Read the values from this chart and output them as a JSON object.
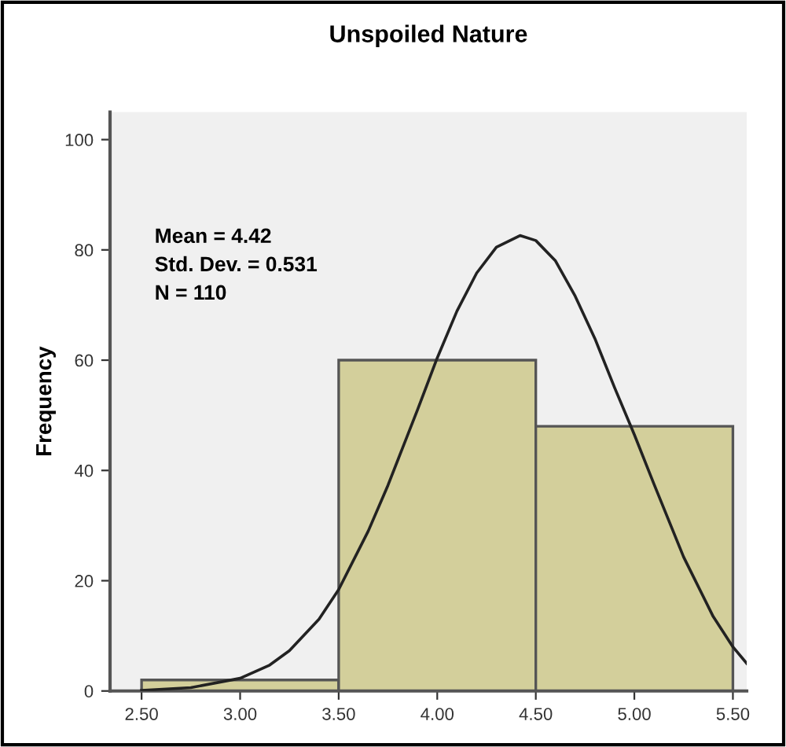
{
  "chart_data": {
    "type": "histogram",
    "title": "Unspoiled Nature",
    "ylabel": "Frequency",
    "bins": [
      2.5,
      3.5,
      4.5,
      5.5
    ],
    "values": [
      2,
      60,
      48
    ],
    "color": "#d3cf9b",
    "series": [
      {
        "type": "line",
        "color": "#222222",
        "x": [
          2.5,
          2.75,
          3.0,
          3.15,
          3.25,
          3.4,
          3.5,
          3.65,
          3.75,
          3.9,
          4.0,
          4.1,
          4.2,
          4.3,
          4.42,
          4.5,
          4.6,
          4.7,
          4.8,
          4.9,
          5.0,
          5.1,
          5.25,
          5.4,
          5.5,
          5.57
        ],
        "values": [
          0.1,
          0.6,
          2.3,
          4.7,
          7.3,
          13.0,
          18.4,
          29.0,
          37.3,
          51.0,
          60.4,
          68.9,
          75.8,
          80.5,
          82.6,
          81.7,
          78.0,
          71.6,
          63.9,
          55.0,
          46.5,
          37.5,
          24.3,
          13.5,
          8,
          5
        ]
      }
    ],
    "annotations": [
      "Mean = 4.42\nStd. Dev. = 0.531\nN = 110"
    ],
    "xlim": [
      2.34,
      5.57
    ],
    "ylim": [
      0,
      105
    ],
    "xticks": [
      {
        "value": 2.5,
        "label": "2.50"
      },
      {
        "value": 3.0,
        "label": "3.00"
      },
      {
        "value": 3.5,
        "label": "3.50"
      },
      {
        "value": 4.0,
        "label": "4.00"
      },
      {
        "value": 4.5,
        "label": "4.50"
      },
      {
        "value": 5.0,
        "label": "5.00"
      },
      {
        "value": 5.5,
        "label": "5.50"
      }
    ],
    "yticks": [
      0,
      20,
      40,
      60,
      80,
      100
    ],
    "grid": false,
    "legend": false
  }
}
